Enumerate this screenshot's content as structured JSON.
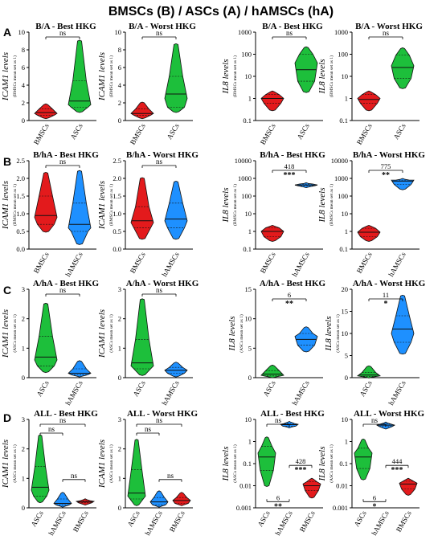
{
  "figure_title": "BMSCs (B) / ASCs (A) / hAMSCs (hA)",
  "row_labels": [
    "A",
    "B",
    "C",
    "D"
  ],
  "colors": {
    "BMSCs": "#e31a1c",
    "ASCs": "#1dbf3b",
    "hAMSCs": "#1e90ff"
  },
  "chart_data": [
    {
      "type": "violin",
      "title": "B/A - Best HKG",
      "ylabel": "ICAM1 levels",
      "ylabel_note": "(BMSCs mean set as 1)",
      "scale": "linear",
      "ylim": [
        0,
        10
      ],
      "yticks": [
        0,
        2,
        4,
        6,
        8,
        10
      ],
      "tick_labels": [
        "0",
        "2",
        "4",
        "6",
        "8",
        "10"
      ],
      "categories": [
        "BMSCs",
        "ASCs"
      ],
      "category_colors": [
        "BMSCs",
        "ASCs"
      ],
      "groups": [
        {
          "min": 0.3,
          "q1": 0.6,
          "median": 0.9,
          "q3": 1.3,
          "max": 1.8,
          "peak": 0.8
        },
        {
          "min": 1.0,
          "q1": 1.5,
          "median": 2.2,
          "q3": 4.5,
          "max": 9.0,
          "peak": 1.8
        }
      ],
      "comparisons": [
        {
          "pair": [
            0,
            1
          ],
          "label": "ns",
          "fold": "",
          "level": 0
        }
      ]
    },
    {
      "type": "violin",
      "title": "B/A - Worst HKG",
      "ylabel": "ICAM1 levels",
      "ylabel_note": "(BMSCs mean set as 1)",
      "scale": "linear",
      "ylim": [
        0,
        10
      ],
      "yticks": [
        0,
        2,
        4,
        6,
        8,
        10
      ],
      "tick_labels": [
        "0",
        "2",
        "4",
        "6",
        "8",
        "10"
      ],
      "categories": [
        "BMSCs",
        "ASCs"
      ],
      "category_colors": [
        "BMSCs",
        "ASCs"
      ],
      "groups": [
        {
          "min": 0.3,
          "q1": 0.6,
          "median": 0.8,
          "q3": 1.3,
          "max": 2.0,
          "peak": 0.8
        },
        {
          "min": 1.0,
          "q1": 1.5,
          "median": 3.0,
          "q3": 5.0,
          "max": 8.6,
          "peak": 2.5
        }
      ],
      "comparisons": [
        {
          "pair": [
            0,
            1
          ],
          "label": "ns",
          "fold": "",
          "level": 0
        }
      ]
    },
    {
      "type": "violin",
      "title": "B/A - Best HKG",
      "ylabel": "IL8 levels",
      "ylabel_note": "(BMSCs mean set as 1)",
      "scale": "log",
      "ylim": [
        0.1,
        1000
      ],
      "yticks": [
        0.1,
        1,
        10,
        100,
        1000
      ],
      "tick_labels": [
        "0.1",
        "1",
        "10",
        "100",
        "1000"
      ],
      "categories": [
        "BMSCs",
        "ASCs"
      ],
      "category_colors": [
        "BMSCs",
        "ASCs"
      ],
      "groups": [
        {
          "min": 0.3,
          "q1": 0.6,
          "median": 1.0,
          "q3": 1.5,
          "max": 2.0,
          "peak": 1.0
        },
        {
          "min": 2.0,
          "q1": 6,
          "median": 20,
          "q3": 100,
          "max": 200,
          "peak": 40
        }
      ],
      "comparisons": [
        {
          "pair": [
            0,
            1
          ],
          "label": "ns",
          "fold": "",
          "level": 0
        }
      ]
    },
    {
      "type": "violin",
      "title": "B/A - Worst HKG",
      "ylabel": "IL8 levels",
      "ylabel_note": "(BMSCs mean set as 1)",
      "scale": "log",
      "ylim": [
        0.1,
        1000
      ],
      "yticks": [
        0.1,
        1,
        10,
        100,
        1000
      ],
      "tick_labels": [
        "0.1",
        "1",
        "10",
        "100",
        "1000"
      ],
      "categories": [
        "BMSCs",
        "ASCs"
      ],
      "category_colors": [
        "BMSCs",
        "ASCs"
      ],
      "groups": [
        {
          "min": 0.3,
          "q1": 0.6,
          "median": 0.9,
          "q3": 1.5,
          "max": 2.0,
          "peak": 1.0
        },
        {
          "min": 3.0,
          "q1": 8,
          "median": 25,
          "q3": 90,
          "max": 180,
          "peak": 30
        }
      ],
      "comparisons": [
        {
          "pair": [
            0,
            1
          ],
          "label": "ns",
          "fold": "",
          "level": 0
        }
      ]
    },
    {
      "type": "violin",
      "title": "B/hA - Best HKG",
      "ylabel": "ICAM1 levels",
      "ylabel_note": "(BMSCs mean set as 1)",
      "scale": "linear",
      "ylim": [
        0,
        2.5
      ],
      "yticks": [
        0,
        0.5,
        1,
        1.5,
        2,
        2.5
      ],
      "tick_labels": [
        "0.0",
        "0.5",
        "1.0",
        "1.5",
        "2.0",
        "2.5"
      ],
      "categories": [
        "BMSCs",
        "hAMSCs"
      ],
      "category_colors": [
        "BMSCs",
        "hAMSCs"
      ],
      "groups": [
        {
          "min": 0.5,
          "q1": 0.7,
          "median": 0.95,
          "q3": 1.5,
          "max": 2.15,
          "peak": 0.9
        },
        {
          "min": 0.15,
          "q1": 0.5,
          "median": 0.7,
          "q3": 1.3,
          "max": 2.2,
          "peak": 0.6
        }
      ],
      "comparisons": [
        {
          "pair": [
            0,
            1
          ],
          "label": "ns",
          "fold": "",
          "level": 0
        }
      ]
    },
    {
      "type": "violin",
      "title": "B/hA - Worst HKG",
      "ylabel": "ICAM1 levels",
      "ylabel_note": "(BMSCs mean set as 1)",
      "scale": "linear",
      "ylim": [
        0,
        2.5
      ],
      "yticks": [
        0,
        0.5,
        1,
        1.5,
        2,
        2.5
      ],
      "tick_labels": [
        "0.0",
        "0.5",
        "1.0",
        "1.5",
        "2.0",
        "2.5"
      ],
      "categories": [
        "BMSCs",
        "hAMSCs"
      ],
      "category_colors": [
        "BMSCs",
        "hAMSCs"
      ],
      "groups": [
        {
          "min": 0.3,
          "q1": 0.6,
          "median": 0.8,
          "q3": 1.2,
          "max": 2.0,
          "peak": 0.75
        },
        {
          "min": 0.3,
          "q1": 0.6,
          "median": 0.85,
          "q3": 1.3,
          "max": 1.9,
          "peak": 0.8
        }
      ],
      "comparisons": [
        {
          "pair": [
            0,
            1
          ],
          "label": "ns",
          "fold": "",
          "level": 0
        }
      ]
    },
    {
      "type": "violin",
      "title": "B/hA - Best HKG",
      "ylabel": "IL8 levels",
      "ylabel_note": "(BMSCs mean set as 1)",
      "scale": "log",
      "ylim": [
        0.1,
        10000
      ],
      "yticks": [
        0.1,
        1,
        10,
        100,
        1000,
        10000
      ],
      "tick_labels": [
        "0.1",
        "1",
        "10",
        "100",
        "1000",
        "10000"
      ],
      "categories": [
        "BMSCs",
        "hAMSCs"
      ],
      "category_colors": [
        "BMSCs",
        "hAMSCs"
      ],
      "groups": [
        {
          "min": 0.3,
          "q1": 0.5,
          "median": 1.0,
          "q3": 1.6,
          "max": 2.0,
          "peak": 1.0
        },
        {
          "min": 330,
          "q1": 380,
          "median": 420,
          "q3": 480,
          "max": 520,
          "peak": 420
        }
      ],
      "comparisons": [
        {
          "pair": [
            0,
            1
          ],
          "label": "***",
          "fold": "418",
          "level": 0
        }
      ]
    },
    {
      "type": "violin",
      "title": "B/hA - Worst HKG",
      "ylabel": "IL8 levels",
      "ylabel_note": "(BMSCs mean set as 1)",
      "scale": "log",
      "ylim": [
        0.1,
        10000
      ],
      "yticks": [
        0.1,
        1,
        10,
        100,
        1000,
        10000
      ],
      "tick_labels": [
        "0.1",
        "1",
        "10",
        "100",
        "1000",
        "10000"
      ],
      "categories": [
        "BMSCs",
        "hAMSCs"
      ],
      "category_colors": [
        "BMSCs",
        "hAMSCs"
      ],
      "groups": [
        {
          "min": 0.3,
          "q1": 0.5,
          "median": 0.9,
          "q3": 1.5,
          "max": 2.0,
          "peak": 0.9
        },
        {
          "min": 250,
          "q1": 450,
          "median": 700,
          "q3": 800,
          "max": 900,
          "peak": 800
        }
      ],
      "comparisons": [
        {
          "pair": [
            0,
            1
          ],
          "label": "**",
          "fold": "775",
          "level": 0
        }
      ]
    },
    {
      "type": "violin",
      "title": "A/hA - Best HKG",
      "ylabel": "ICAM1 levels",
      "ylabel_note": "(ASCs mean set as 1)",
      "scale": "linear",
      "ylim": [
        0,
        3
      ],
      "yticks": [
        0,
        1,
        2,
        3
      ],
      "tick_labels": [
        "0",
        "1",
        "2",
        "3"
      ],
      "categories": [
        "ASCs",
        "hAMSCs"
      ],
      "category_colors": [
        "ASCs",
        "hAMSCs"
      ],
      "groups": [
        {
          "min": 0.2,
          "q1": 0.4,
          "median": 0.7,
          "q3": 1.4,
          "max": 2.5,
          "peak": 0.6
        },
        {
          "min": 0.05,
          "q1": 0.1,
          "median": 0.15,
          "q3": 0.3,
          "max": 0.55,
          "peak": 0.15
        }
      ],
      "comparisons": [
        {
          "pair": [
            0,
            1
          ],
          "label": "ns",
          "fold": "",
          "level": 0
        }
      ]
    },
    {
      "type": "violin",
      "title": "A/hA - Worst HKG",
      "ylabel": "ICAM1 levels",
      "ylabel_note": "(ASCs mean set as 1)",
      "scale": "linear",
      "ylim": [
        0,
        3
      ],
      "yticks": [
        0,
        1,
        2,
        3
      ],
      "tick_labels": [
        "0",
        "1",
        "2",
        "3"
      ],
      "categories": [
        "ASCs",
        "hAMSCs"
      ],
      "category_colors": [
        "ASCs",
        "hAMSCs"
      ],
      "groups": [
        {
          "min": 0.1,
          "q1": 0.3,
          "median": 0.5,
          "q3": 1.3,
          "max": 2.65,
          "peak": 0.4
        },
        {
          "min": 0.05,
          "q1": 0.15,
          "median": 0.25,
          "q3": 0.35,
          "max": 0.5,
          "peak": 0.25
        }
      ],
      "comparisons": [
        {
          "pair": [
            0,
            1
          ],
          "label": "ns",
          "fold": "",
          "level": 0
        }
      ]
    },
    {
      "type": "violin",
      "title": "A/hA - Best HKG",
      "ylabel": "IL8 levels",
      "ylabel_note": "(ASCs mean set as 1)",
      "scale": "linear",
      "ylim": [
        0,
        15
      ],
      "yticks": [
        0,
        5,
        10,
        15
      ],
      "tick_labels": [
        "0",
        "5",
        "10",
        "15"
      ],
      "categories": [
        "ASCs",
        "hAMSCs"
      ],
      "category_colors": [
        "ASCs",
        "hAMSCs"
      ],
      "groups": [
        {
          "min": 0.1,
          "q1": 0.3,
          "median": 0.6,
          "q3": 1.2,
          "max": 2.0,
          "peak": 0.4
        },
        {
          "min": 4.5,
          "q1": 5.5,
          "median": 6.5,
          "q3": 7.5,
          "max": 8.5,
          "peak": 7.0
        }
      ],
      "comparisons": [
        {
          "pair": [
            0,
            1
          ],
          "label": "**",
          "fold": "6",
          "level": 0
        }
      ]
    },
    {
      "type": "violin",
      "title": "A/hA - Worst HKG",
      "ylabel": "IL8 levels",
      "ylabel_note": "(ASCs mean set as 1)",
      "scale": "linear",
      "ylim": [
        0,
        20
      ],
      "yticks": [
        0,
        5,
        10,
        15,
        20
      ],
      "tick_labels": [
        "0",
        "5",
        "10",
        "15",
        "20"
      ],
      "categories": [
        "ASCs",
        "hAMSCs"
      ],
      "category_colors": [
        "ASCs",
        "hAMSCs"
      ],
      "groups": [
        {
          "min": 0.1,
          "q1": 0.3,
          "median": 0.6,
          "q3": 1.2,
          "max": 2.5,
          "peak": 0.4
        },
        {
          "min": 5.5,
          "q1": 8,
          "median": 11,
          "q3": 14,
          "max": 18.5,
          "peak": 10
        }
      ],
      "comparisons": [
        {
          "pair": [
            0,
            1
          ],
          "label": "*",
          "fold": "11",
          "level": 0
        }
      ]
    },
    {
      "type": "violin",
      "title": "ALL - Best HKG",
      "ylabel": "ICAM1 levels",
      "ylabel_note": "(ASCs mean set as 1)",
      "scale": "linear",
      "ylim": [
        0,
        3
      ],
      "yticks": [
        0,
        1,
        2,
        3
      ],
      "tick_labels": [
        "0",
        "1",
        "2",
        "3"
      ],
      "categories": [
        "ASCs",
        "hAMSCs",
        "BMSCs"
      ],
      "category_colors": [
        "ASCs",
        "hAMSCs",
        "BMSCs"
      ],
      "groups": [
        {
          "min": 0.2,
          "q1": 0.4,
          "median": 0.7,
          "q3": 1.4,
          "max": 2.45,
          "peak": 0.6
        },
        {
          "min": 0.05,
          "q1": 0.1,
          "median": 0.15,
          "q3": 0.3,
          "max": 0.5,
          "peak": 0.15
        },
        {
          "min": 0.12,
          "q1": 0.17,
          "median": 0.2,
          "q3": 0.24,
          "max": 0.28,
          "peak": 0.22
        }
      ],
      "comparisons": [
        {
          "pair": [
            0,
            2
          ],
          "label": "ns",
          "fold": "",
          "level": 1
        },
        {
          "pair": [
            0,
            1
          ],
          "label": "ns",
          "fold": "",
          "level": 0
        },
        {
          "pair": [
            1,
            2
          ],
          "label": "ns",
          "fold": "",
          "level": -1
        }
      ]
    },
    {
      "type": "violin",
      "title": "ALL - Worst HKG",
      "ylabel": "ICAM1 levels",
      "ylabel_note": "(ASCs mean set as 1)",
      "scale": "linear",
      "ylim": [
        0,
        3
      ],
      "yticks": [
        0,
        1,
        2,
        3
      ],
      "tick_labels": [
        "0",
        "1",
        "2",
        "3"
      ],
      "categories": [
        "ASCs",
        "hAMSCs",
        "BMSCs"
      ],
      "category_colors": [
        "ASCs",
        "hAMSCs",
        "BMSCs"
      ],
      "groups": [
        {
          "min": 0.1,
          "q1": 0.3,
          "median": 0.5,
          "q3": 1.3,
          "max": 2.3,
          "peak": 0.4
        },
        {
          "min": 0.05,
          "q1": 0.1,
          "median": 0.2,
          "q3": 0.35,
          "max": 0.55,
          "peak": 0.2
        },
        {
          "min": 0.1,
          "q1": 0.15,
          "median": 0.25,
          "q3": 0.35,
          "max": 0.5,
          "peak": 0.25
        }
      ],
      "comparisons": [
        {
          "pair": [
            0,
            2
          ],
          "label": "ns",
          "fold": "",
          "level": 1
        },
        {
          "pair": [
            0,
            1
          ],
          "label": "ns",
          "fold": "",
          "level": 0
        },
        {
          "pair": [
            1,
            2
          ],
          "label": "ns",
          "fold": "",
          "level": -1
        }
      ]
    },
    {
      "type": "violin",
      "title": "ALL - Best HKG",
      "ylabel": "IL8 levels",
      "ylabel_note": "(ASCs mean set as 1)",
      "scale": "log",
      "ylim": [
        0.001,
        10
      ],
      "yticks": [
        0.001,
        0.01,
        0.1,
        1,
        10
      ],
      "tick_labels": [
        "0.001",
        "0.01",
        "0.1",
        "1",
        "10"
      ],
      "categories": [
        "ASCs",
        "hAMSCs",
        "BMSCs"
      ],
      "category_colors": [
        "ASCs",
        "hAMSCs",
        "BMSCs"
      ],
      "groups": [
        {
          "min": 0.01,
          "q1": 0.05,
          "median": 0.2,
          "q3": 0.6,
          "max": 1.5,
          "peak": 0.3
        },
        {
          "min": 4.5,
          "q1": 5.0,
          "median": 5.8,
          "q3": 6.5,
          "max": 7.5,
          "peak": 6.0
        },
        {
          "min": 0.003,
          "q1": 0.006,
          "median": 0.01,
          "q3": 0.015,
          "max": 0.02,
          "peak": 0.012
        }
      ],
      "comparisons": [
        {
          "pair": [
            0,
            1
          ],
          "label": "ns",
          "fold": "",
          "level": 1
        },
        {
          "pair": [
            1,
            2
          ],
          "label": "***",
          "fold": "428",
          "level": 0
        },
        {
          "pair": [
            0,
            1
          ],
          "label": "**",
          "fold": "6",
          "level": -2
        }
      ]
    },
    {
      "type": "violin",
      "title": "ALL - Worst HKG",
      "ylabel": "IL8 levels",
      "ylabel_note": "(ASCs mean set as 1)",
      "scale": "log",
      "ylim": [
        0.001,
        10
      ],
      "yticks": [
        0.001,
        0.01,
        0.1,
        1,
        10
      ],
      "tick_labels": [
        "0.001",
        "0.01",
        "0.1",
        "1",
        "10"
      ],
      "categories": [
        "ASCs",
        "hAMSCs",
        "BMSCs"
      ],
      "category_colors": [
        "ASCs",
        "hAMSCs",
        "BMSCs"
      ],
      "groups": [
        {
          "min": 0.02,
          "q1": 0.06,
          "median": 0.2,
          "q3": 0.5,
          "max": 1.2,
          "peak": 0.3
        },
        {
          "min": 4.0,
          "q1": 4.8,
          "median": 5.5,
          "q3": 6.2,
          "max": 7.0,
          "peak": 5.5
        },
        {
          "min": 0.004,
          "q1": 0.007,
          "median": 0.012,
          "q3": 0.016,
          "max": 0.02,
          "peak": 0.013
        }
      ],
      "comparisons": [
        {
          "pair": [
            0,
            1
          ],
          "label": "ns",
          "fold": "",
          "level": 1
        },
        {
          "pair": [
            1,
            2
          ],
          "label": "***",
          "fold": "444",
          "level": 0
        },
        {
          "pair": [
            0,
            1
          ],
          "label": "*",
          "fold": "6",
          "level": -2
        }
      ]
    }
  ]
}
